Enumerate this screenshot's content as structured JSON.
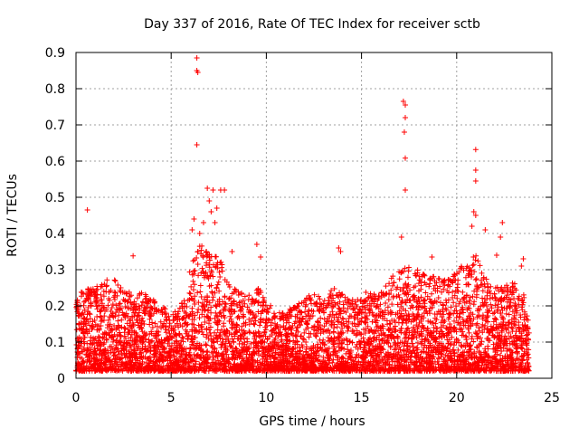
{
  "chart_data": {
    "type": "scatter",
    "title": "Day 337 of 2016, Rate Of TEC Index for receiver sctb",
    "xlabel": "GPS time / hours",
    "ylabel": "ROTI / TECUs",
    "xlim": [
      0,
      25
    ],
    "ylim": [
      0,
      0.9
    ],
    "xticks": [
      0,
      5,
      10,
      15,
      20,
      25
    ],
    "xtick_labels": [
      "0",
      "5",
      "10",
      "15",
      "20",
      "25"
    ],
    "yticks": [
      0,
      0.1,
      0.2,
      0.3,
      0.4,
      0.5,
      0.6,
      0.7,
      0.8,
      0.9
    ],
    "ytick_labels": [
      "0",
      "0.1",
      "0.2",
      "0.3",
      "0.4",
      "0.5",
      "0.6",
      "0.7",
      "0.8",
      "0.9"
    ],
    "grid": true,
    "marker": "+",
    "color": "#ff0000",
    "series": [
      {
        "name": "ROTI",
        "envelope": [
          [
            0.0,
            0.22
          ],
          [
            0.5,
            0.26
          ],
          [
            1.0,
            0.25
          ],
          [
            1.5,
            0.27
          ],
          [
            2.0,
            0.28
          ],
          [
            2.5,
            0.25
          ],
          [
            3.0,
            0.23
          ],
          [
            3.5,
            0.24
          ],
          [
            4.0,
            0.22
          ],
          [
            4.5,
            0.2
          ],
          [
            5.0,
            0.18
          ],
          [
            5.5,
            0.22
          ],
          [
            6.0,
            0.3
          ],
          [
            6.5,
            0.38
          ],
          [
            7.0,
            0.36
          ],
          [
            7.5,
            0.34
          ],
          [
            8.0,
            0.28
          ],
          [
            8.5,
            0.24
          ],
          [
            9.0,
            0.23
          ],
          [
            9.5,
            0.26
          ],
          [
            10.0,
            0.22
          ],
          [
            10.5,
            0.18
          ],
          [
            11.0,
            0.19
          ],
          [
            11.5,
            0.2
          ],
          [
            12.0,
            0.22
          ],
          [
            12.5,
            0.24
          ],
          [
            13.0,
            0.22
          ],
          [
            13.5,
            0.25
          ],
          [
            14.0,
            0.24
          ],
          [
            14.5,
            0.22
          ],
          [
            15.0,
            0.23
          ],
          [
            15.5,
            0.25
          ],
          [
            16.0,
            0.26
          ],
          [
            16.5,
            0.28
          ],
          [
            17.0,
            0.3
          ],
          [
            17.5,
            0.32
          ],
          [
            18.0,
            0.3
          ],
          [
            18.5,
            0.29
          ],
          [
            19.0,
            0.28
          ],
          [
            19.5,
            0.27
          ],
          [
            20.0,
            0.3
          ],
          [
            20.5,
            0.32
          ],
          [
            21.0,
            0.34
          ],
          [
            21.5,
            0.28
          ],
          [
            22.0,
            0.25
          ],
          [
            22.5,
            0.26
          ],
          [
            23.0,
            0.27
          ],
          [
            23.5,
            0.24
          ],
          [
            23.8,
            0.15
          ]
        ],
        "floor": [
          [
            0.0,
            0.02
          ],
          [
            5.0,
            0.02
          ],
          [
            10.0,
            0.02
          ],
          [
            15.0,
            0.02
          ],
          [
            20.0,
            0.02
          ],
          [
            23.8,
            0.02
          ]
        ],
        "outliers": [
          [
            0.6,
            0.465
          ],
          [
            3.0,
            0.338
          ],
          [
            6.35,
            0.885
          ],
          [
            6.35,
            0.85
          ],
          [
            6.4,
            0.845
          ],
          [
            6.35,
            0.645
          ],
          [
            6.2,
            0.44
          ],
          [
            6.1,
            0.41
          ],
          [
            6.5,
            0.4
          ],
          [
            6.7,
            0.43
          ],
          [
            6.9,
            0.525
          ],
          [
            7.0,
            0.49
          ],
          [
            7.2,
            0.52
          ],
          [
            7.4,
            0.47
          ],
          [
            7.6,
            0.52
          ],
          [
            7.8,
            0.52
          ],
          [
            7.1,
            0.46
          ],
          [
            7.3,
            0.43
          ],
          [
            8.2,
            0.35
          ],
          [
            9.5,
            0.37
          ],
          [
            9.7,
            0.335
          ],
          [
            13.8,
            0.36
          ],
          [
            13.9,
            0.35
          ],
          [
            17.2,
            0.765
          ],
          [
            17.3,
            0.755
          ],
          [
            17.3,
            0.72
          ],
          [
            17.25,
            0.68
          ],
          [
            17.3,
            0.608
          ],
          [
            17.3,
            0.52
          ],
          [
            17.1,
            0.39
          ],
          [
            18.7,
            0.335
          ],
          [
            21.0,
            0.632
          ],
          [
            21.0,
            0.575
          ],
          [
            21.0,
            0.545
          ],
          [
            20.9,
            0.46
          ],
          [
            21.0,
            0.45
          ],
          [
            20.8,
            0.42
          ],
          [
            21.5,
            0.41
          ],
          [
            22.4,
            0.43
          ],
          [
            22.3,
            0.39
          ],
          [
            22.1,
            0.34
          ],
          [
            23.5,
            0.33
          ],
          [
            23.4,
            0.31
          ]
        ]
      }
    ]
  }
}
